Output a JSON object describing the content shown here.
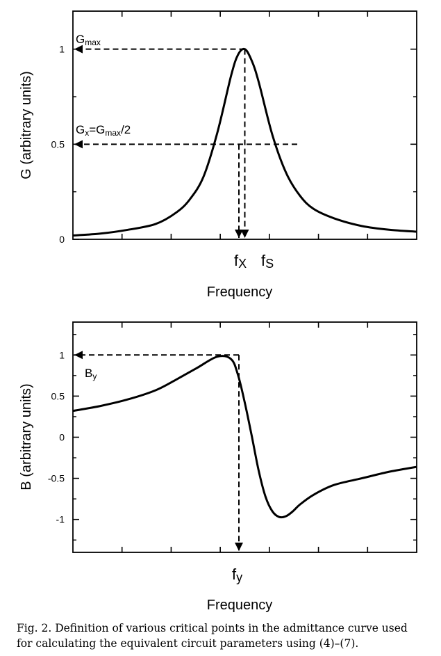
{
  "chart_data": [
    {
      "type": "line",
      "xlabel": "Frequency",
      "ylabel": "G (arbitrary units)",
      "ylim": [
        0,
        1.2
      ],
      "yticks": [
        {
          "value": 0,
          "label": "0"
        },
        {
          "value": 0.5,
          "label": "0.5"
        },
        {
          "value": 1,
          "label": "1"
        }
      ],
      "curve": "conductance peak (Lorentzian), maximum 1 at f_s, half maximum at f_x",
      "x": [
        0.0,
        0.08,
        0.16,
        0.24,
        0.3,
        0.34,
        0.38,
        0.42,
        0.46,
        0.48,
        0.5,
        0.52,
        0.54,
        0.58,
        0.62,
        0.66,
        0.7,
        0.76,
        0.84,
        0.92,
        1.0
      ],
      "y": [
        0.02,
        0.03,
        0.05,
        0.08,
        0.14,
        0.21,
        0.33,
        0.56,
        0.86,
        0.97,
        1.0,
        0.94,
        0.83,
        0.55,
        0.35,
        0.23,
        0.16,
        0.11,
        0.07,
        0.05,
        0.04
      ],
      "annotations": {
        "gmax_label": {
          "main": "G",
          "sub": "max"
        },
        "gx_label": {
          "g": "G",
          "x": "x",
          "eq": "=G",
          "max": "max",
          "div": "/2"
        },
        "fx_label": {
          "main": "f",
          "sub": "X"
        },
        "fs_label": {
          "main": "f",
          "sub": "S"
        }
      }
    },
    {
      "type": "line",
      "xlabel": "Frequency",
      "ylabel": "B (arbitrary units)",
      "ylim": [
        -1.4,
        1.4
      ],
      "yticks": [
        {
          "value": -1,
          "label": "-1"
        },
        {
          "value": -0.5,
          "label": "-0.5"
        },
        {
          "value": 0,
          "label": "0"
        },
        {
          "value": 0.5,
          "label": "0.5"
        },
        {
          "value": 1,
          "label": "1"
        }
      ],
      "curve": "susceptance curve, maximum 1 at f_y, minimum about -0.97",
      "x": [
        0.0,
        0.08,
        0.16,
        0.24,
        0.3,
        0.36,
        0.42,
        0.46,
        0.48,
        0.5,
        0.52,
        0.54,
        0.56,
        0.58,
        0.6,
        0.62,
        0.64,
        0.66,
        0.7,
        0.76,
        0.84,
        0.92,
        1.0
      ],
      "y": [
        0.32,
        0.38,
        0.46,
        0.57,
        0.7,
        0.84,
        0.98,
        0.95,
        0.76,
        0.42,
        0.02,
        -0.4,
        -0.72,
        -0.9,
        -0.97,
        -0.96,
        -0.9,
        -0.82,
        -0.7,
        -0.58,
        -0.5,
        -0.42,
        -0.36
      ],
      "annotations": {
        "by_label": {
          "main": "B",
          "sub": "y"
        },
        "fy_label": {
          "main": "f",
          "sub": "y"
        }
      }
    }
  ],
  "caption": "Fig. 2. Definition of various critical points in the admittance curve used for calculating the equivalent circuit parameters using (4)–(7)."
}
